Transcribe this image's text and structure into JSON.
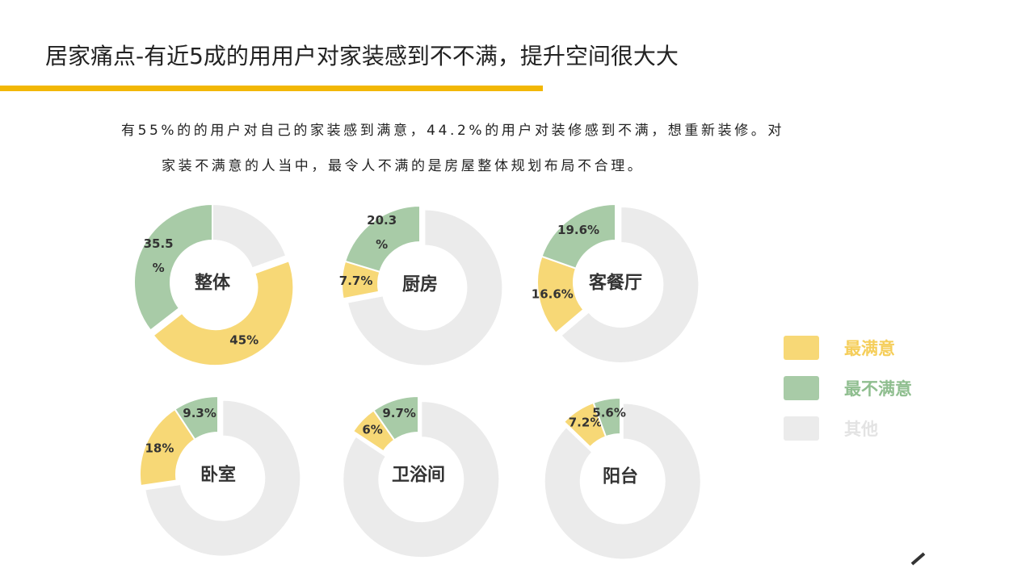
{
  "title": "居家痛点-有近5成的用用户对家装感到不不满，提升空间很大大",
  "description": {
    "line1": "有55%的的用户对自己的家装感到满意，44.2%的用户对装修感到不满，想重新装修。对",
    "line2": "家装不满意的人当中，最令人不满的是房屋整体规划布局不合理。"
  },
  "colors": {
    "accent": "#f2b705",
    "satisfied": "#f7d876",
    "dissatisfied": "#a8cba7",
    "other": "#ebebeb"
  },
  "legend": [
    {
      "label": "最满意",
      "color": "#f7d876",
      "text_color": "#f5ce5a"
    },
    {
      "label": "最不满意",
      "color": "#a8cba7",
      "text_color": "#8fbe8f"
    },
    {
      "label": "其他",
      "color": "#ebebeb",
      "text_color": "#e3e3e3"
    }
  ],
  "chart_data": [
    {
      "type": "donut",
      "title": "整体",
      "series": [
        {
          "name": "最满意",
          "value": 45,
          "label": "45%"
        },
        {
          "name": "最不满意",
          "value": 35.5,
          "label": "35.5\n%"
        },
        {
          "name": "其他",
          "value": 19.5,
          "label": ""
        }
      ]
    },
    {
      "type": "donut",
      "title": "厨房",
      "series": [
        {
          "name": "最满意",
          "value": 7.7,
          "label": "7.7%"
        },
        {
          "name": "最不满意",
          "value": 20.3,
          "label": "20.3\n%"
        },
        {
          "name": "其他",
          "value": 72,
          "label": ""
        }
      ]
    },
    {
      "type": "donut",
      "title": "客餐厅",
      "series": [
        {
          "name": "最满意",
          "value": 16.6,
          "label": "16.6%"
        },
        {
          "name": "最不满意",
          "value": 19.6,
          "label": "19.6%"
        },
        {
          "name": "其他",
          "value": 63.8,
          "label": ""
        }
      ]
    },
    {
      "type": "donut",
      "title": "卧室",
      "series": [
        {
          "name": "最满意",
          "value": 18,
          "label": "18%"
        },
        {
          "name": "最不满意",
          "value": 9.3,
          "label": "9.3%"
        },
        {
          "name": "其他",
          "value": 72.7,
          "label": ""
        }
      ]
    },
    {
      "type": "donut",
      "title": "卫浴间",
      "series": [
        {
          "name": "最满意",
          "value": 6,
          "label": "6%"
        },
        {
          "name": "最不满意",
          "value": 9.7,
          "label": "9.7%"
        },
        {
          "name": "其他",
          "value": 84.3,
          "label": ""
        }
      ]
    },
    {
      "type": "donut",
      "title": "阳台",
      "series": [
        {
          "name": "最满意",
          "value": 7.2,
          "label": "7.2%"
        },
        {
          "name": "最不满意",
          "value": 5.6,
          "label": "5.6%"
        },
        {
          "name": "其他",
          "value": 87.2,
          "label": ""
        }
      ]
    }
  ],
  "icons": {
    "corner": "pen-icon"
  }
}
